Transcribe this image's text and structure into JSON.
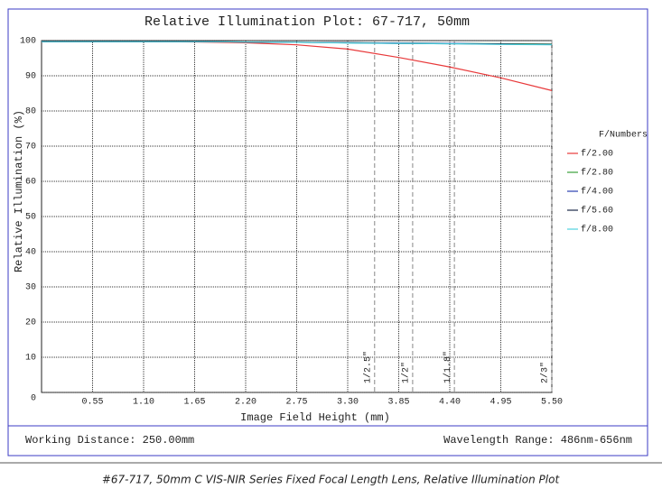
{
  "chart_data": {
    "type": "line",
    "title": "Relative Illumination Plot: 67-717, 50mm",
    "x_label": "Image Field Height (mm)",
    "y_label": "Relative Illumination (%)",
    "x": [
      0,
      0.55,
      1.1,
      1.65,
      2.2,
      2.75,
      3.3,
      3.85,
      4.4,
      4.95,
      5.5
    ],
    "series": [
      {
        "name": "f/2.00",
        "color": "#e8393a",
        "values": [
          99.7,
          99.7,
          99.7,
          99.6,
          99.4,
          98.8,
          97.6,
          95.2,
          92.5,
          89.4,
          85.8
        ]
      },
      {
        "name": "f/2.80",
        "color": "#3aa03a",
        "values": [
          99.7,
          99.7,
          99.7,
          99.7,
          99.6,
          99.5,
          99.4,
          99.3,
          99.2,
          99.1,
          99.0
        ]
      },
      {
        "name": "f/4.00",
        "color": "#2a3fb0",
        "values": [
          99.7,
          99.7,
          99.7,
          99.7,
          99.6,
          99.5,
          99.4,
          99.3,
          99.2,
          99.0,
          98.9
        ]
      },
      {
        "name": "f/5.60",
        "color": "#1a2a4a",
        "values": [
          99.7,
          99.7,
          99.7,
          99.7,
          99.6,
          99.5,
          99.4,
          99.2,
          99.1,
          99.0,
          98.9
        ]
      },
      {
        "name": "f/8.00",
        "color": "#4fd2e0",
        "values": [
          99.7,
          99.7,
          99.7,
          99.7,
          99.6,
          99.5,
          99.3,
          99.2,
          99.1,
          98.9,
          98.8
        ]
      }
    ],
    "xlim": [
      0,
      5.5
    ],
    "xticks": [
      0.55,
      {
        "value": 1.1,
        "label": "1.10"
      },
      1.65,
      {
        "value": 2.2,
        "label": "2.20"
      },
      2.75,
      {
        "value": 3.3,
        "label": "3.30"
      },
      3.85,
      {
        "value": 4.4,
        "label": "4.40"
      },
      4.95,
      {
        "value": 5.5,
        "label": "5.50"
      }
    ],
    "ylim": [
      0,
      100
    ],
    "yticks": [
      0,
      10,
      20,
      30,
      40,
      50,
      60,
      70,
      80,
      90,
      100
    ],
    "grid": true,
    "legend_title": "F/Numbers",
    "legend": "right",
    "sensor_markers": [
      {
        "value": 3.59,
        "label": "1/2.5\""
      },
      {
        "value": 4.0,
        "label": "1/2\""
      },
      {
        "value": 4.45,
        "label": "1/1.8\""
      },
      {
        "value": 5.5,
        "label": "2/3\""
      }
    ]
  },
  "footer": {
    "working_distance": "Working Distance: 250.00mm",
    "wavelength_range": "Wavelength Range: 486nm-656nm"
  },
  "caption": "#67-717, 50mm C VIS-NIR Series Fixed Focal Length Lens, Relative Illumination Plot"
}
